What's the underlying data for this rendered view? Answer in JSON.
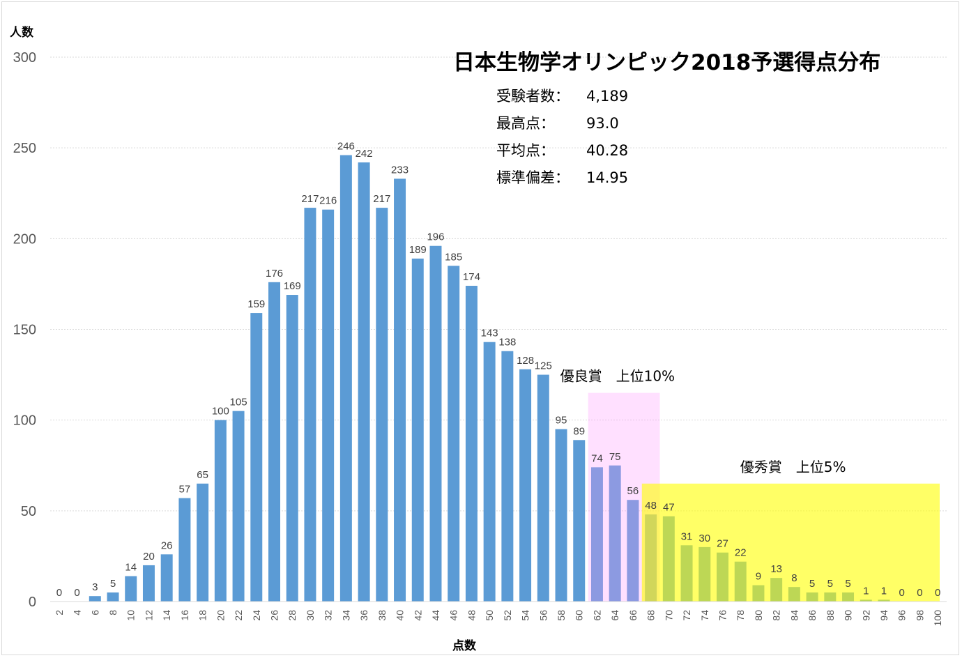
{
  "chart_data": {
    "type": "bar",
    "title": "日本生物学オリンピック2018予選得点分布",
    "xlabel": "点数",
    "ylabel": "人数",
    "ylim": [
      0,
      300
    ],
    "yticks": [
      0,
      50,
      100,
      150,
      200,
      250,
      300
    ],
    "grid": true,
    "categories": [
      "2",
      "4",
      "6",
      "8",
      "10",
      "12",
      "14",
      "16",
      "18",
      "20",
      "22",
      "24",
      "26",
      "28",
      "30",
      "32",
      "34",
      "36",
      "38",
      "40",
      "42",
      "44",
      "46",
      "48",
      "50",
      "52",
      "54",
      "56",
      "58",
      "60",
      "62",
      "64",
      "66",
      "68",
      "70",
      "72",
      "74",
      "76",
      "78",
      "80",
      "82",
      "84",
      "86",
      "88",
      "90",
      "92",
      "94",
      "96",
      "98",
      "100"
    ],
    "values": [
      0,
      0,
      3,
      5,
      14,
      20,
      26,
      57,
      65,
      100,
      105,
      159,
      176,
      169,
      217,
      216,
      246,
      242,
      217,
      233,
      189,
      196,
      185,
      174,
      143,
      138,
      128,
      125,
      95,
      89,
      74,
      75,
      56,
      48,
      47,
      31,
      30,
      27,
      22,
      9,
      13,
      8,
      5,
      5,
      5,
      1,
      1,
      0,
      0,
      0
    ],
    "bar_color": "#5b9bd5",
    "stats": [
      {
        "label": "受験者数：",
        "value": "4,189"
      },
      {
        "label": "最高点：",
        "value": "93.0"
      },
      {
        "label": "平均点：",
        "value": "40.28"
      },
      {
        "label": "標準偏差：",
        "value": "14.95"
      }
    ],
    "regions": [
      {
        "name": "優良賞　上位10%",
        "from_category": "62",
        "to_category": "68",
        "height": 115,
        "color": "#ff99ff",
        "opacity": 0.3
      },
      {
        "name": "優秀賞　上位5%",
        "from_category": "68",
        "to_category": "100",
        "height": 65,
        "color": "#ffff00",
        "opacity": 0.6
      }
    ]
  }
}
